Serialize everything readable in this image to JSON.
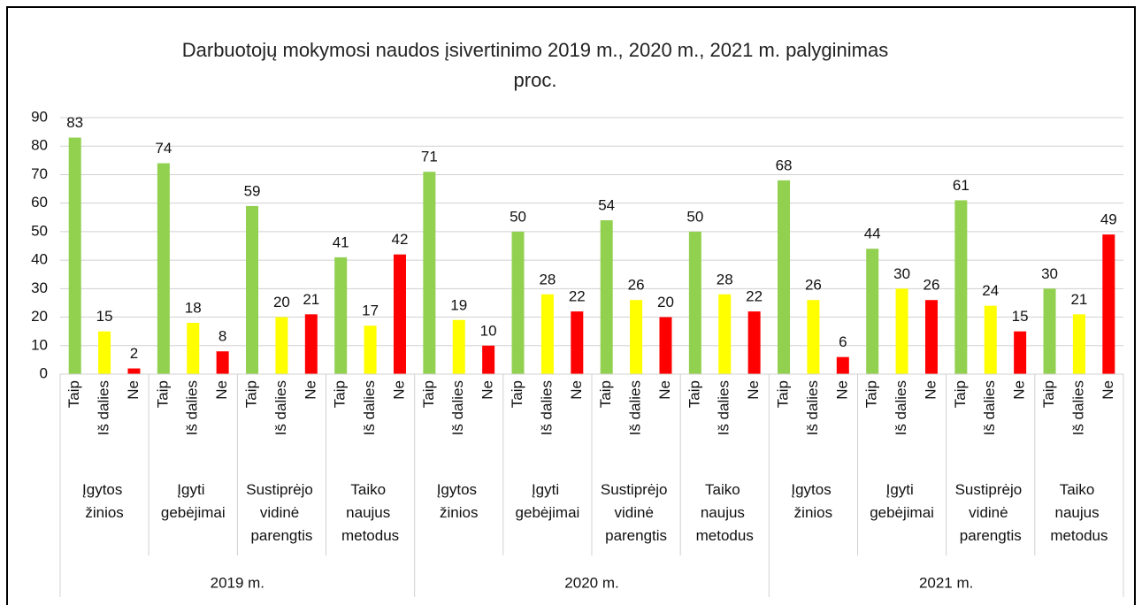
{
  "chart_data": {
    "type": "bar",
    "title": "Darbuotojų mokymosi naudos įsivertinimo 2019 m., 2020 m., 2021 m. palyginimas proc.",
    "years": [
      "2019 m.",
      "2020 m.",
      "2021 m."
    ],
    "groups": [
      "Įgytos žinios",
      "Įgyti gebėjimai",
      "Sustiprėjo vidinė parengtis",
      "Taiko naujus metodus",
      "Įgytos žinios",
      "Įgyti gebėjimai",
      "Sustiprėjo vidinė parengtis",
      "Taiko naujus metodus",
      "Įgytos žinios",
      "Įgyti gebėjimai",
      "Sustiprėjo vidinė parengtis",
      "Taiko naujus metodus"
    ],
    "categories": [
      "Taip",
      "Iš dalies",
      "Ne",
      "Taip",
      "Iš dalies",
      "Ne",
      "Taip",
      "Iš dalies",
      "Ne",
      "Taip",
      "Iš dalies",
      "Ne",
      "Taip",
      "Iš dalies",
      "Ne",
      "Taip",
      "Iš dalies",
      "Ne",
      "Taip",
      "Iš dalies",
      "Ne",
      "Taip",
      "Iš dalies",
      "Ne",
      "Taip",
      "Iš dalies",
      "Ne",
      "Taip",
      "Iš dalies",
      "Ne",
      "Taip",
      "Iš dalies",
      "Ne",
      "Taip",
      "Iš dalies",
      "Ne"
    ],
    "values": [
      83,
      15,
      2,
      74,
      18,
      8,
      59,
      20,
      21,
      41,
      17,
      42,
      71,
      19,
      10,
      50,
      28,
      22,
      54,
      26,
      20,
      50,
      28,
      22,
      68,
      26,
      6,
      44,
      30,
      26,
      61,
      24,
      15,
      30,
      21,
      49
    ],
    "colors": [
      "#92d050",
      "#ffff00",
      "#ff0000",
      "#92d050",
      "#ffff00",
      "#ff0000",
      "#92d050",
      "#ffff00",
      "#ff0000",
      "#92d050",
      "#ffff00",
      "#ff0000",
      "#92d050",
      "#ffff00",
      "#ff0000",
      "#92d050",
      "#ffff00",
      "#ff0000",
      "#92d050",
      "#ffff00",
      "#ff0000",
      "#92d050",
      "#ffff00",
      "#ff0000",
      "#92d050",
      "#ffff00",
      "#ff0000",
      "#92d050",
      "#ffff00",
      "#ff0000",
      "#92d050",
      "#ffff00",
      "#ff0000",
      "#92d050",
      "#ffff00",
      "#ff0000"
    ],
    "ylim": [
      0,
      90
    ],
    "yticks": [
      0,
      10,
      20,
      30,
      40,
      50,
      60,
      70,
      80,
      90
    ],
    "grid": true
  }
}
